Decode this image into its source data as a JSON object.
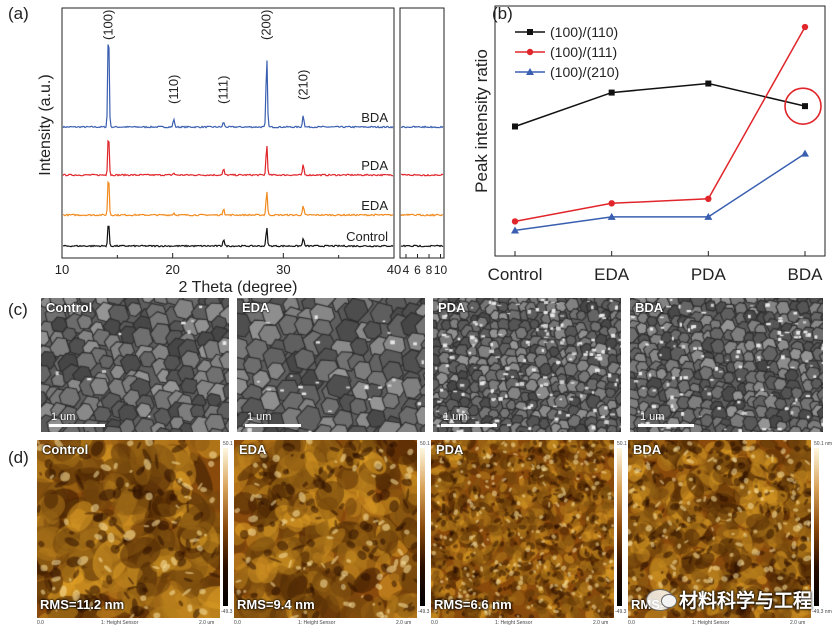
{
  "panels": {
    "a": "(a)",
    "b": "(b)",
    "c": "(c)",
    "d": "(d)"
  },
  "chart_data": [
    {
      "type": "line",
      "panel": "(a)",
      "xlabel": "2 Theta (degree)",
      "ylabel": "Intensity (a.u.)",
      "xlim": [
        10,
        40
      ],
      "xticks": [
        "10",
        "20",
        "30",
        "40"
      ],
      "inset_xticks": [
        "4",
        "6",
        "8",
        "10"
      ],
      "series": [
        {
          "name": "BDA",
          "color": "#3a5fb0",
          "peaks": [
            {
              "x": 14.2,
              "h": 100
            },
            {
              "x": 20.1,
              "h": 8
            },
            {
              "x": 24.6,
              "h": 5
            },
            {
              "x": 28.5,
              "h": 68
            },
            {
              "x": 31.8,
              "h": 12
            }
          ]
        },
        {
          "name": "PDA",
          "color": "#e0262b",
          "peaks": [
            {
              "x": 14.2,
              "h": 42
            },
            {
              "x": 20.1,
              "h": 2
            },
            {
              "x": 24.6,
              "h": 6
            },
            {
              "x": 28.5,
              "h": 30
            },
            {
              "x": 31.8,
              "h": 10
            }
          ]
        },
        {
          "name": "EDA",
          "color": "#f28a1e",
          "peaks": [
            {
              "x": 14.2,
              "h": 40
            },
            {
              "x": 20.1,
              "h": 2
            },
            {
              "x": 24.6,
              "h": 7
            },
            {
              "x": 28.5,
              "h": 24
            },
            {
              "x": 31.8,
              "h": 9
            }
          ]
        },
        {
          "name": "Control",
          "color": "#111111",
          "peaks": [
            {
              "x": 14.2,
              "h": 24
            },
            {
              "x": 24.6,
              "h": 7
            },
            {
              "x": 28.5,
              "h": 18
            },
            {
              "x": 31.8,
              "h": 8
            }
          ]
        }
      ],
      "annotations": [
        {
          "text": "(100)",
          "x": 14.2
        },
        {
          "text": "(110)",
          "x": 20.1
        },
        {
          "text": "(111)",
          "x": 24.6
        },
        {
          "text": "(200)",
          "x": 28.5
        },
        {
          "text": "(210)",
          "x": 31.8
        }
      ]
    },
    {
      "type": "line",
      "panel": "(b)",
      "categories": [
        "Control",
        "EDA",
        "PDA",
        "BDA"
      ],
      "ylabel": "Peak intensity ratio",
      "legend": "top-left",
      "ylim": [
        0,
        100
      ],
      "series": [
        {
          "name": "(100)/(110)",
          "color": "#111111",
          "marker": "square",
          "values": [
            52,
            67,
            71,
            61
          ]
        },
        {
          "name": "(100)/(111)",
          "color": "#e0262b",
          "marker": "circle",
          "values": [
            10,
            18,
            20,
            96
          ]
        },
        {
          "name": "(100)/(210)",
          "color": "#3a5fb0",
          "marker": "triangle",
          "values": [
            6,
            12,
            12,
            40
          ]
        }
      ],
      "highlight": {
        "series": "(100)/(110)",
        "category": "BDA",
        "color": "#e0262b"
      }
    }
  ],
  "sem": {
    "tiles": [
      {
        "label": "Control",
        "scale": "1 um"
      },
      {
        "label": "EDA",
        "scale": "1 um"
      },
      {
        "label": "PDA",
        "scale": "1 um"
      },
      {
        "label": "BDA",
        "scale": "1 um"
      }
    ]
  },
  "afm": {
    "colorbar_top": "50.1 nm",
    "colorbar_bottom": "-49.3 nm",
    "footer": "1: Height Sensor",
    "axis_start": "0.0",
    "axis_end": "2.0 um",
    "tiles": [
      {
        "label": "Control",
        "rms": "RMS=11.2 nm"
      },
      {
        "label": "EDA",
        "rms": "RMS=9.4 nm"
      },
      {
        "label": "PDA",
        "rms": "RMS=6.6 nm"
      },
      {
        "label": "BDA",
        "rms": "RMS="
      }
    ]
  },
  "watermark": {
    "text": "材料科学与工程"
  }
}
